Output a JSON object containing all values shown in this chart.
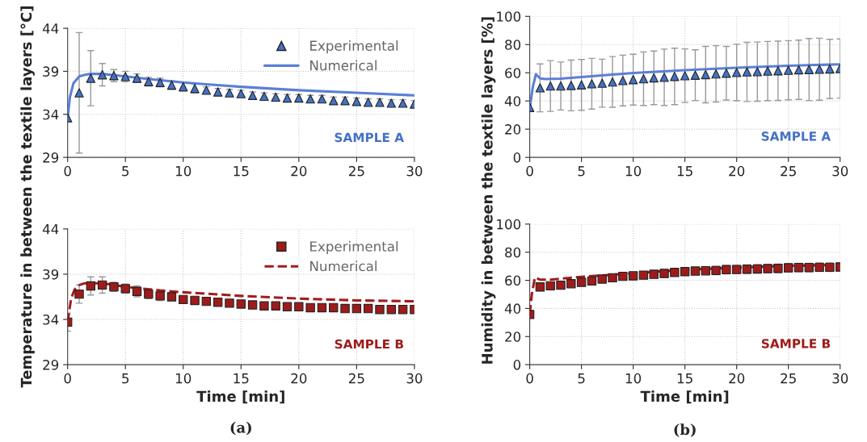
{
  "chart_data": [
    {
      "type": "scatter",
      "ylabel": "Temperature in between the textile layers [°C]",
      "xlim": [
        0,
        30
      ],
      "xticks": [
        0,
        5,
        10,
        15,
        20,
        25,
        30
      ],
      "ylim": [
        29,
        44
      ],
      "yticks": [
        29,
        34,
        39,
        44
      ],
      "grid": true,
      "legend": "top right",
      "annotations": [
        "SAMPLE A"
      ],
      "x": [
        0,
        1,
        2,
        3,
        4,
        5,
        6,
        7,
        8,
        9,
        10,
        11,
        12,
        13,
        14,
        15,
        16,
        17,
        18,
        19,
        20,
        21,
        22,
        23,
        24,
        25,
        26,
        27,
        28,
        29,
        30
      ],
      "series": [
        {
          "name": "Experimental",
          "marker": "triangle",
          "color": "#4472c4",
          "values": [
            33.6,
            36.5,
            38.2,
            38.6,
            38.5,
            38.4,
            38.2,
            37.8,
            37.7,
            37.4,
            37.2,
            37.0,
            36.8,
            36.6,
            36.5,
            36.4,
            36.2,
            36.1,
            36.0,
            35.9,
            35.9,
            35.8,
            35.8,
            35.6,
            35.6,
            35.5,
            35.4,
            35.4,
            35.3,
            35.3,
            35.2
          ],
          "errors": [
            null,
            7,
            3.2,
            1.3,
            0.7,
            0.6,
            0.5,
            0.5,
            0.5,
            0.5,
            0.5,
            0.5,
            0.4,
            0.4,
            0.4,
            0.4,
            0.4,
            0.4,
            0.4,
            0.4,
            0.4,
            0.4,
            0.4,
            0.4,
            0.4,
            0.4,
            0.4,
            0.4,
            0.4,
            0.4,
            0.4
          ]
        },
        {
          "name": "Numerical",
          "type": "line",
          "line_style": "solid",
          "color": "#5b7fd6",
          "x": [
            0,
            0.2,
            0.5,
            1,
            1.5,
            2,
            3,
            5,
            7,
            10,
            12,
            15,
            20,
            25,
            30
          ],
          "values": [
            33.6,
            36.0,
            37.6,
            38.4,
            38.6,
            38.7,
            38.7,
            38.4,
            38.1,
            37.7,
            37.5,
            37.2,
            36.8,
            36.5,
            36.2
          ]
        }
      ]
    },
    {
      "type": "scatter",
      "ylabel": "Humidity in between the textile layers [%]",
      "xlim": [
        0,
        30
      ],
      "xticks": [
        0,
        5,
        10,
        15,
        20,
        25,
        30
      ],
      "ylim": [
        0,
        100
      ],
      "yticks": [
        0,
        20,
        40,
        60,
        80,
        100
      ],
      "grid": true,
      "annotations": [
        "SAMPLE A"
      ],
      "x": [
        0,
        1,
        2,
        3,
        4,
        5,
        6,
        7,
        8,
        9,
        10,
        11,
        12,
        13,
        14,
        15,
        16,
        17,
        18,
        19,
        20,
        21,
        22,
        23,
        24,
        25,
        26,
        27,
        28,
        29,
        30
      ],
      "series": [
        {
          "marker": "triangle",
          "color": "#4472c4",
          "values": [
            35.4,
            49.3,
            50.6,
            50.6,
            51.0,
            51.4,
            52.2,
            52.6,
            53.5,
            54.5,
            55.1,
            55.8,
            56.4,
            56.8,
            57.4,
            57.9,
            58.3,
            58.7,
            59.2,
            59.7,
            60.2,
            60.6,
            60.8,
            61.2,
            61.4,
            61.8,
            62.1,
            62.3,
            62.5,
            62.7,
            63.0
          ],
          "errors": [
            null,
            17,
            18,
            17,
            18,
            18,
            18,
            17,
            18,
            18,
            18,
            19,
            19,
            20,
            20,
            19,
            18,
            20,
            20,
            19,
            20,
            21,
            21,
            21,
            21,
            21,
            21,
            22,
            22,
            21,
            21
          ]
        },
        {
          "type": "line",
          "line_style": "solid",
          "color": "#5b7fd6",
          "x": [
            0,
            0.3,
            0.6,
            1,
            1.5,
            3,
            5,
            10,
            15,
            20,
            25,
            30
          ],
          "values": [
            35,
            50,
            59,
            56,
            55.5,
            55.8,
            57,
            59.8,
            61.8,
            63.5,
            65,
            66
          ]
        }
      ]
    },
    {
      "type": "scatter",
      "xlabel": "Time [min]",
      "xlim": [
        0,
        30
      ],
      "xticks": [
        0,
        5,
        10,
        15,
        20,
        25,
        30
      ],
      "ylim": [
        29,
        44
      ],
      "yticks": [
        29,
        34,
        39,
        44
      ],
      "grid": true,
      "legend": "top right",
      "annotations": [
        "SAMPLE B",
        "(a)"
      ],
      "x": [
        0,
        1,
        2,
        3,
        4,
        5,
        6,
        7,
        8,
        9,
        10,
        11,
        12,
        13,
        14,
        15,
        16,
        17,
        18,
        19,
        20,
        21,
        22,
        23,
        24,
        25,
        26,
        27,
        28,
        29,
        30
      ],
      "series": [
        {
          "name": "Experimental",
          "marker": "square",
          "color": "#9e1b1b",
          "values": [
            33.7,
            36.8,
            37.7,
            37.8,
            37.6,
            37.4,
            37.1,
            36.8,
            36.6,
            36.5,
            36.2,
            36.1,
            36.0,
            35.9,
            35.8,
            35.7,
            35.6,
            35.5,
            35.5,
            35.4,
            35.4,
            35.3,
            35.3,
            35.3,
            35.2,
            35.2,
            35.2,
            35.1,
            35.1,
            35.1,
            35.1
          ],
          "errors": [
            1,
            1,
            1,
            0.9,
            0.5,
            0.5,
            0.6,
            0.5,
            0.5,
            0.3,
            0.3,
            0.3,
            0.3,
            0.3,
            0.3,
            0.3,
            0.3,
            0.3,
            0.3,
            0.3,
            0.3,
            0.3,
            0.3,
            0.3,
            0.3,
            0.3,
            0.3,
            0.3,
            0.3,
            0.3,
            0.3
          ]
        },
        {
          "name": "Numerical",
          "type": "line",
          "line_style": "dashed",
          "color": "#a31c1c",
          "x": [
            0,
            0.3,
            0.6,
            1,
            1.5,
            3,
            5,
            8,
            10,
            15,
            20,
            25,
            30
          ],
          "values": [
            33.7,
            36.3,
            37.3,
            37.8,
            38.0,
            38.0,
            37.6,
            37.2,
            37.0,
            36.6,
            36.3,
            36.1,
            36.0
          ]
        }
      ]
    },
    {
      "type": "scatter",
      "xlabel": "Time [min]",
      "xlim": [
        0,
        30
      ],
      "xticks": [
        0,
        5,
        10,
        15,
        20,
        25,
        30
      ],
      "ylim": [
        0,
        100
      ],
      "yticks": [
        0,
        20,
        40,
        60,
        80,
        100
      ],
      "grid": true,
      "annotations": [
        "SAMPLE B",
        "(b)"
      ],
      "x": [
        0,
        1,
        2,
        3,
        4,
        5,
        6,
        7,
        8,
        9,
        10,
        11,
        12,
        13,
        14,
        15,
        16,
        17,
        18,
        19,
        20,
        21,
        22,
        23,
        24,
        25,
        26,
        27,
        28,
        29,
        30
      ],
      "series": [
        {
          "marker": "square",
          "color": "#9e1b1b",
          "values": [
            35.7,
            55.3,
            56.1,
            56.5,
            57.6,
            58.6,
            59.5,
            60.9,
            61.8,
            62.8,
            63.2,
            63.7,
            64.3,
            64.9,
            65.6,
            66.2,
            66.6,
            66.8,
            67.0,
            67.6,
            67.7,
            67.9,
            68.1,
            68.3,
            68.5,
            68.9,
            69.1,
            69.1,
            69.3,
            69.3,
            69.5
          ],
          "errors": [
            2,
            2,
            2,
            2,
            2,
            2,
            2,
            2,
            2,
            2,
            2,
            2,
            2,
            2,
            2,
            2,
            2,
            2,
            3,
            3,
            3,
            3,
            3,
            3,
            3,
            3,
            3,
            3,
            3,
            3,
            3
          ]
        },
        {
          "type": "line",
          "line_style": "dashed",
          "color": "#a31c1c",
          "x": [
            0,
            0.2,
            0.5,
            1,
            2,
            5,
            10,
            15,
            20,
            25,
            30
          ],
          "values": [
            36,
            50,
            62,
            60.5,
            60.5,
            62.5,
            65,
            67.5,
            69,
            70.3,
            71
          ]
        }
      ]
    }
  ]
}
